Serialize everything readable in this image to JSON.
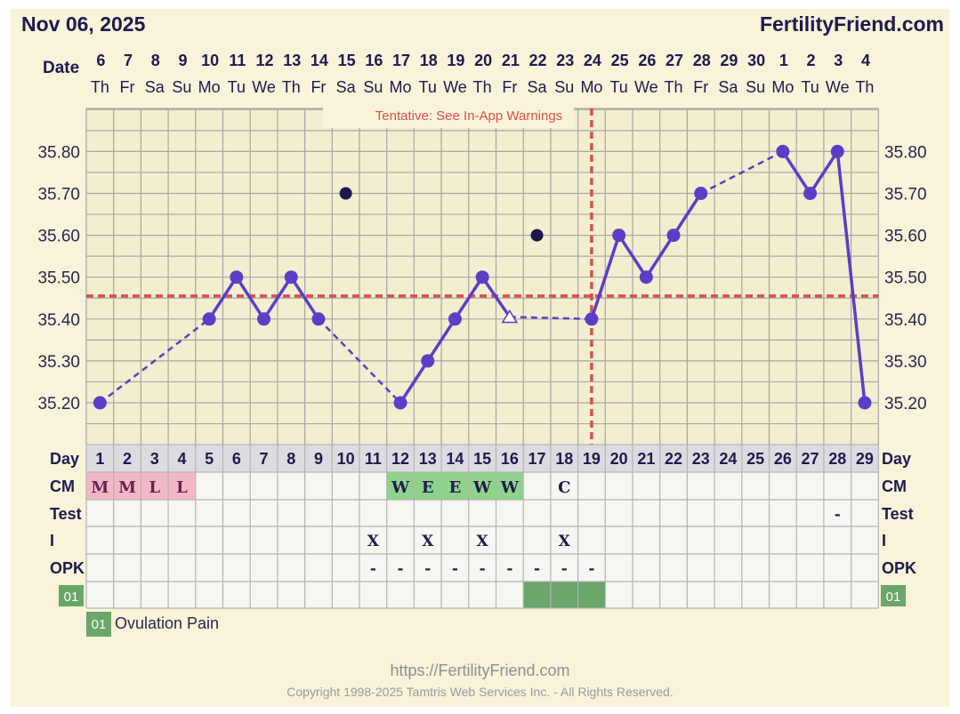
{
  "header": {
    "date": "Nov 06, 2025",
    "site": "FertilityFriend.com"
  },
  "footer": {
    "url": "https://FertilityFriend.com",
    "copyright": "Copyright 1998-2025 Tamtris Web Services Inc. - All Rights Reserved."
  },
  "legend": {
    "code": "01",
    "label": "Ovulation Pain"
  },
  "colors": {
    "panel_bg": "#f8f3d9",
    "line": "#5a3ec8",
    "coverline": "#d85050",
    "menstruation": "#f2b8c8",
    "cervical_mucus": "#8fd38a",
    "ovulation_pain": "#6aa56a",
    "outlier_point": "#1b1a4a"
  },
  "chart_data": {
    "type": "line",
    "annotation": "Tentative: See In-App Warnings",
    "row_labels": {
      "date": "Date",
      "day": "Day",
      "cm": "CM",
      "test": "Test",
      "intercourse": "I",
      "opk": "OPK",
      "custom": "01"
    },
    "dates": [
      "6",
      "7",
      "8",
      "9",
      "10",
      "11",
      "12",
      "13",
      "14",
      "15",
      "16",
      "17",
      "18",
      "19",
      "20",
      "21",
      "22",
      "23",
      "24",
      "25",
      "26",
      "27",
      "28",
      "29",
      "30",
      "1",
      "2",
      "3",
      "4"
    ],
    "weekdays": [
      "Th",
      "Fr",
      "Sa",
      "Su",
      "Mo",
      "Tu",
      "We",
      "Th",
      "Fr",
      "Sa",
      "Su",
      "Mo",
      "Tu",
      "We",
      "Th",
      "Fr",
      "Sa",
      "Su",
      "Mo",
      "Tu",
      "We",
      "Th",
      "Fr",
      "Sa",
      "Su",
      "Mo",
      "Tu",
      "We",
      "Th"
    ],
    "days": [
      1,
      2,
      3,
      4,
      5,
      6,
      7,
      8,
      9,
      10,
      11,
      12,
      13,
      14,
      15,
      16,
      17,
      18,
      19,
      20,
      21,
      22,
      23,
      24,
      25,
      26,
      27,
      28,
      29
    ],
    "y_ticks": [
      "35.20",
      "35.30",
      "35.40",
      "35.50",
      "35.60",
      "35.70",
      "35.80"
    ],
    "ylim": [
      35.1,
      35.9
    ],
    "coverline": 35.455,
    "ovulation_day": 19,
    "temperatures": [
      35.2,
      null,
      null,
      null,
      35.4,
      35.5,
      35.4,
      35.5,
      35.4,
      null,
      null,
      35.2,
      35.3,
      35.4,
      35.5,
      35.405,
      null,
      null,
      35.4,
      35.6,
      35.5,
      35.6,
      35.7,
      null,
      null,
      35.8,
      35.7,
      35.8,
      35.2
    ],
    "outlier_points": [
      {
        "day": 10,
        "temp": 35.7
      },
      {
        "day": 17,
        "temp": 35.6
      }
    ],
    "open_marker_day": 16,
    "cm": [
      "M",
      "M",
      "L",
      "L",
      "",
      "",
      "",
      "",
      "",
      "",
      "",
      "W",
      "E",
      "E",
      "W",
      "W",
      "",
      "C",
      "",
      "",
      "",
      "",
      "",
      "",
      "",
      "",
      "",
      "",
      ""
    ],
    "test": [
      "",
      "",
      "",
      "",
      "",
      "",
      "",
      "",
      "",
      "",
      "",
      "",
      "",
      "",
      "",
      "",
      "",
      "",
      "",
      "",
      "",
      "",
      "",
      "",
      "",
      "",
      "",
      "-",
      ""
    ],
    "intercourse": [
      "",
      "",
      "",
      "",
      "",
      "",
      "",
      "",
      "",
      "",
      "X",
      "",
      "X",
      "",
      "X",
      "",
      "",
      "X",
      "",
      "",
      "",
      "",
      "",
      "",
      "",
      "",
      "",
      "",
      ""
    ],
    "opk": [
      "",
      "",
      "",
      "",
      "",
      "",
      "",
      "",
      "",
      "",
      "-",
      "-",
      "-",
      "-",
      "-",
      "-",
      "-",
      "-",
      "-",
      "",
      "",
      "",
      "",
      "",
      "",
      "",
      "",
      "",
      ""
    ],
    "ovulation_pain_days": [
      17,
      18,
      19
    ]
  }
}
